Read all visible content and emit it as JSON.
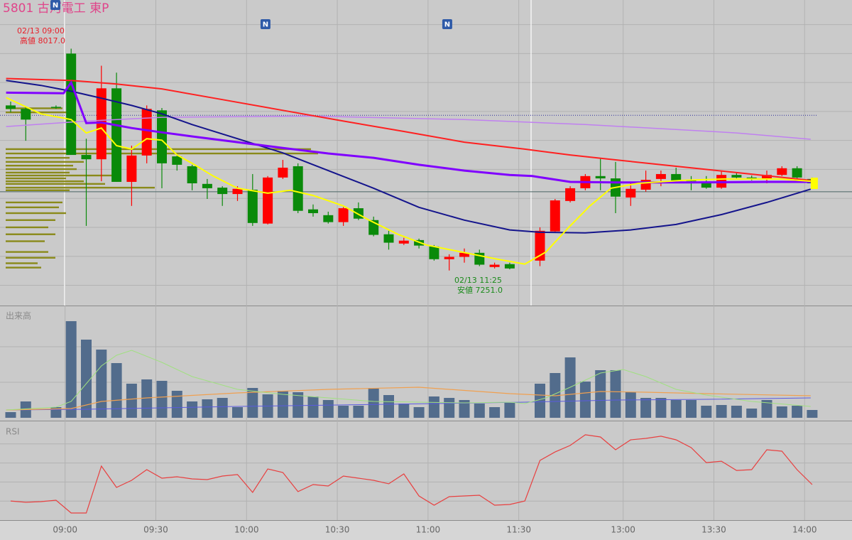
{
  "chart_data": {
    "type": "candlestick",
    "title": "5801 古河電工 東P",
    "xlim": [
      -0.704,
      55.634
    ],
    "xticks": [
      {
        "value": 3.6,
        "label": "09:00"
      },
      {
        "value": 9.6,
        "label": "09:30"
      },
      {
        "value": 15.6,
        "label": "10:00"
      },
      {
        "value": 21.6,
        "label": "10:30"
      },
      {
        "value": 27.6,
        "label": "11:00"
      },
      {
        "value": 33.6,
        "label": "11:30"
      },
      {
        "value": 40.5,
        "label": "13:00"
      },
      {
        "value": 46.5,
        "label": "13:30"
      },
      {
        "value": 52.5,
        "label": "14:00"
      }
    ],
    "ylim": [
      7130,
      8185
    ],
    "ygrid": [
      7200,
      7300,
      7400,
      7500,
      7600,
      7700,
      7800,
      7900,
      8000,
      8100
    ],
    "grid": true,
    "up_color": "#ff0000",
    "down_color": "#0a8a0a",
    "open": [
      7821,
      7809,
      null,
      7816,
      8000,
      7650,
      7635,
      7880,
      7557,
      7648,
      7804,
      7645,
      7611,
      7550,
      7537,
      7515,
      7530,
      7413,
      7572,
      7611,
      7462,
      7442,
      7418,
      7466,
      7425,
      7376,
      7344,
      7356,
      7334,
      7290,
      7298,
      7312,
      7263,
      7273,
      null,
      7285,
      7386,
      7491,
      7535,
      7577,
      7569,
      7503,
      7530,
      7567,
      7584,
      7564,
      7557,
      7537,
      7581,
      7572,
      7567,
      7581,
      7604,
      7567
    ],
    "high": [
      7834,
      7816,
      null,
      7821,
      8017,
      7706,
      7958,
      7934,
      7682,
      7821,
      7812,
      7650,
      7616,
      7567,
      7542,
      7542,
      7584,
      7577,
      7633,
      7621,
      7479,
      7454,
      7470,
      7486,
      7437,
      7388,
      7364,
      7361,
      7339,
      7307,
      7327,
      7323,
      7278,
      7278,
      null,
      7400,
      7498,
      7542,
      7584,
      7640,
      7626,
      7552,
      7596,
      7596,
      7606,
      7577,
      7577,
      7596,
      7591,
      7579,
      7596,
      7611,
      7611,
      7572
    ],
    "low": [
      7797,
      7699,
      null,
      7809,
      7650,
      7405,
      7559,
      7557,
      7474,
      7621,
      7535,
      7596,
      7528,
      7498,
      7474,
      7491,
      7405,
      7410,
      7567,
      7449,
      7437,
      7413,
      7405,
      7425,
      7369,
      7323,
      7339,
      7327,
      7285,
      7251,
      7278,
      7266,
      7258,
      7255,
      null,
      7266,
      7381,
      7486,
      7528,
      7528,
      7449,
      7474,
      7523,
      7542,
      7552,
      7528,
      7533,
      7533,
      7567,
      7562,
      7552,
      7577,
      7567,
      7542
    ],
    "close": [
      7809,
      7772,
      null,
      7814,
      7650,
      7635,
      7880,
      7557,
      7648,
      7809,
      7621,
      7616,
      7552,
      7535,
      7515,
      7533,
      7415,
      7572,
      7606,
      7457,
      7449,
      7418,
      7466,
      7430,
      7374,
      7347,
      7354,
      7337,
      7290,
      7298,
      7312,
      7271,
      7271,
      7258,
      null,
      7388,
      7493,
      7535,
      7577,
      7569,
      7506,
      7533,
      7564,
      7584,
      7562,
      7559,
      7537,
      7581,
      7572,
      7567,
      7581,
      7604,
      7572,
      7552
    ],
    "overlays": [
      {
        "color": "#c080f0",
        "width": 1.5,
        "x": [
          -0.3,
          5,
          10,
          20,
          30,
          38,
          44,
          48,
          52.9
        ],
        "values": [
          7748,
          7767,
          7780,
          7784,
          7772,
          7755,
          7738,
          7726,
          7704
        ]
      },
      {
        "color": "#ff2020",
        "width": 2,
        "x": [
          -0.3,
          4,
          7,
          10,
          14,
          18,
          22,
          26,
          30,
          34,
          37,
          40,
          44,
          48,
          52.9
        ],
        "values": [
          7914,
          7907,
          7895,
          7878,
          7841,
          7804,
          7767,
          7731,
          7694,
          7670,
          7650,
          7633,
          7611,
          7589,
          7562
        ]
      },
      {
        "color": "#14148c",
        "width": 2,
        "x": [
          -0.3,
          2,
          4,
          6,
          8,
          10,
          12,
          15,
          18,
          21,
          24,
          27,
          30,
          33,
          35,
          38,
          41,
          44,
          47,
          50,
          52.9
        ],
        "values": [
          7907,
          7890,
          7870,
          7846,
          7821,
          7792,
          7755,
          7706,
          7657,
          7596,
          7535,
          7469,
          7425,
          7391,
          7383,
          7381,
          7391,
          7410,
          7444,
          7486,
          7532
        ]
      },
      {
        "color": "#8000ff",
        "width": 3,
        "x": [
          -0.3,
          3.5,
          4,
          5,
          6,
          8,
          10,
          12,
          15,
          18,
          21,
          24,
          27,
          30,
          33,
          34.5,
          37,
          40,
          45,
          50,
          52.9
        ],
        "values": [
          7865,
          7863,
          7900,
          7760,
          7762,
          7743,
          7728,
          7714,
          7694,
          7674,
          7655,
          7640,
          7616,
          7596,
          7581,
          7577,
          7557,
          7555,
          7555,
          7557,
          7557
        ]
      },
      {
        "color": "#ffff00",
        "width": 2,
        "x": [
          -0.3,
          2,
          4,
          5,
          6,
          7,
          8,
          9,
          10,
          11,
          12,
          13.4,
          15,
          17,
          18.5,
          20,
          22,
          23.7,
          25.6,
          27.5,
          29.8,
          32.2,
          34,
          35.4,
          36.9,
          38.3,
          39.7,
          41.5,
          44.4,
          47.2,
          50.9,
          52.9
        ],
        "values": [
          7848,
          7792,
          7772,
          7726,
          7743,
          7682,
          7670,
          7706,
          7701,
          7650,
          7621,
          7577,
          7535,
          7518,
          7528,
          7510,
          7474,
          7425,
          7376,
          7339,
          7315,
          7290,
          7273,
          7315,
          7400,
          7474,
          7535,
          7552,
          7562,
          7567,
          7567,
          7559
        ]
      }
    ],
    "reference_lines": [
      {
        "value": 7787,
        "color": "#2a2a9a",
        "dashed": true
      },
      {
        "value": 7523,
        "color": "#4a6666",
        "dashed": false
      }
    ],
    "profile": {
      "color": "#8a8a1a",
      "xlim": [
        0,
        1192
      ],
      "prices": [
        7811,
        7797,
        7670,
        7655,
        7640,
        7626,
        7613,
        7601,
        7589,
        7579,
        7569,
        7559,
        7550,
        7537,
        7528,
        7486,
        7469,
        7449,
        7425,
        7400,
        7376,
        7352,
        7315,
        7295,
        7276,
        7261
      ],
      "volumes": [
        80,
        90,
        430,
        440,
        90,
        110,
        95,
        100,
        90,
        150,
        85,
        110,
        140,
        210,
        90,
        80,
        75,
        85,
        70,
        60,
        70,
        55,
        60,
        70,
        45,
        50
      ]
    },
    "markers": [
      {
        "x": 2.96,
        "label": "N"
      },
      {
        "x": 16.85,
        "label": "N"
      },
      {
        "x": 28.87,
        "label": "N"
      }
    ],
    "high_annotation": {
      "color": "#e8202a",
      "lines": [
        "02/13 09:00",
        "高値 8017.0"
      ]
    },
    "low_annotation": {
      "color": "#1a8a1a",
      "lines": [
        "02/13 11:25",
        "安値 7251.0"
      ]
    },
    "volume": {
      "label": "出来高",
      "ylim": [
        0,
        300
      ],
      "ygrid": [
        100,
        200
      ],
      "color": "#526c8c",
      "values": [
        16,
        46,
        null,
        30,
        272,
        220,
        192,
        154,
        96,
        108,
        104,
        76,
        46,
        52,
        56,
        30,
        84,
        66,
        76,
        72,
        60,
        50,
        34,
        34,
        84,
        64,
        40,
        30,
        60,
        56,
        50,
        40,
        30,
        42,
        null,
        96,
        126,
        170,
        102,
        134,
        134,
        72,
        56,
        56,
        50,
        50,
        34,
        36,
        34,
        26,
        50,
        32,
        34,
        22
      ],
      "overlays": [
        {
          "color": "#5a5ae0",
          "width": 1,
          "x": [
            -0.3,
            5,
            15,
            25,
            34,
            40,
            46,
            52.9
          ],
          "values": [
            22,
            24,
            32,
            38,
            44,
            50,
            52,
            56
          ]
        },
        {
          "color": "#f0a050",
          "width": 1.2,
          "x": [
            -0.3,
            4,
            6,
            9,
            15,
            21,
            27,
            33,
            36,
            39,
            42,
            46,
            52.9
          ],
          "values": [
            22,
            26,
            46,
            56,
            70,
            80,
            86,
            68,
            62,
            74,
            72,
            68,
            62
          ]
        },
        {
          "color": "#a0e080",
          "width": 1,
          "x": [
            -0.3,
            3,
            4,
            5,
            6,
            7,
            8,
            10,
            12,
            15,
            18,
            21,
            24,
            27,
            30,
            33,
            34,
            35.4,
            37,
            39,
            40.5,
            42,
            44,
            46,
            49,
            52.9
          ],
          "values": [
            22,
            30,
            46,
            96,
            146,
            176,
            190,
            156,
            116,
            80,
            66,
            56,
            46,
            44,
            42,
            44,
            40,
            56,
            86,
            126,
            136,
            116,
            80,
            64,
            46,
            32
          ]
        }
      ]
    },
    "rsi": {
      "label": "RSI",
      "ylim": [
        0,
        100
      ],
      "ygrid": [
        20,
        40,
        60,
        80
      ],
      "color": "#e84040",
      "values": [
        20.1,
        18.7,
        19.4,
        20.9,
        7.5,
        7.5,
        56.7,
        34.3,
        41.8,
        53.0,
        44.0,
        45.5,
        43.3,
        42.5,
        46.3,
        47.8,
        29.1,
        53.7,
        50.0,
        29.9,
        37.3,
        35.8,
        46.3,
        44.0,
        41.8,
        38.1,
        48.5,
        25.4,
        15.7,
        24.6,
        25.4,
        26.1,
        15.7,
        16.4,
        20.1,
        62.7,
        71.6,
        78.4,
        89.6,
        87.3,
        73.9,
        84.3,
        85.8,
        88.1,
        84.3,
        76.1,
        60.4,
        61.9,
        52.2,
        53.0,
        73.9,
        72.4,
        53.0,
        37.3
      ]
    }
  }
}
